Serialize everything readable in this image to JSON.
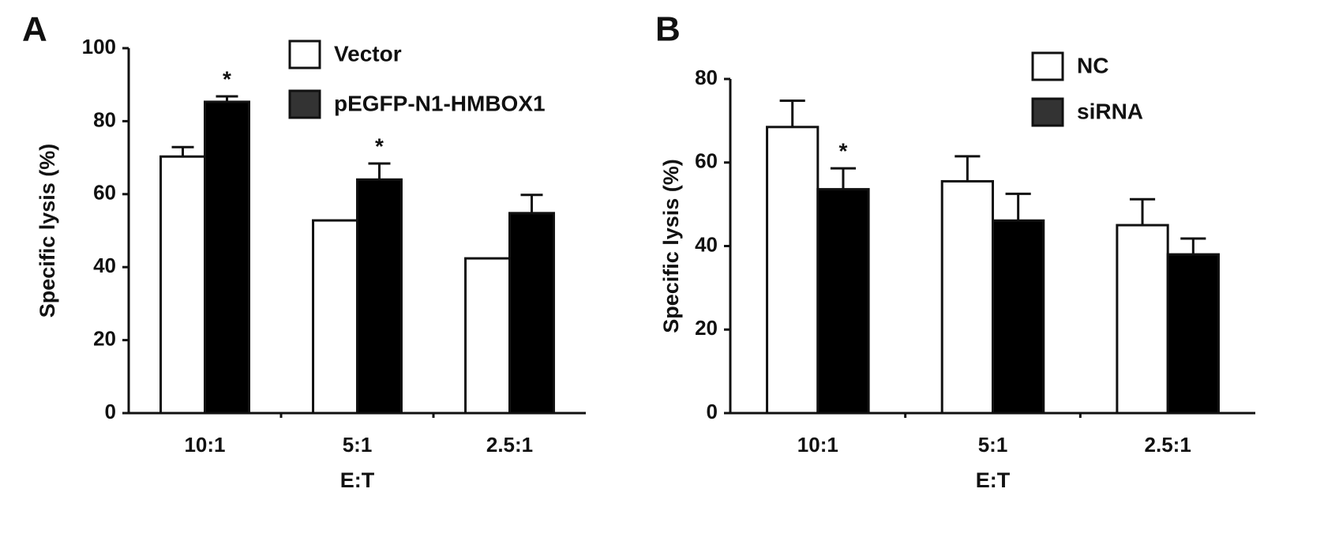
{
  "chart_data": [
    {
      "type": "bar",
      "panel": "A",
      "ylabel": "Specific lysis (%)",
      "xlabel": "E:T",
      "categories": [
        "10:1",
        "5:1",
        "2.5:1"
      ],
      "series": [
        {
          "name": "Vector",
          "color": "#ffffff",
          "values": [
            70.3,
            52.8,
            42.4
          ],
          "errors": [
            2.6,
            null,
            null
          ],
          "markers": [
            null,
            null,
            null
          ]
        },
        {
          "name": "pEGFP-N1-HMBOX1",
          "color": "#000000",
          "legend_color": "#333333",
          "values": [
            85.3,
            64,
            54.8
          ],
          "errors": [
            1.5,
            4.4,
            5
          ],
          "markers": [
            "*",
            "*",
            null
          ]
        }
      ],
      "ylim": [
        0,
        100
      ],
      "yticks": [
        0,
        20,
        40,
        60,
        80,
        100
      ],
      "grid": false,
      "legend": "top"
    },
    {
      "type": "bar",
      "panel": "B",
      "ylabel": "Specific lysis (%)",
      "xlabel": "E:T",
      "categories": [
        "10:1",
        "5:1",
        "2.5:1"
      ],
      "series": [
        {
          "name": "NC",
          "color": "#ffffff",
          "values": [
            68.5,
            55.5,
            45
          ],
          "errors": [
            6.3,
            6,
            6.2
          ],
          "markers": [
            null,
            null,
            null
          ]
        },
        {
          "name": "siRNA",
          "color": "#000000",
          "legend_color": "#333333",
          "values": [
            53.6,
            46.1,
            38
          ],
          "errors": [
            5,
            6.4,
            3.8
          ],
          "markers": [
            "*",
            null,
            null
          ]
        }
      ],
      "ylim": [
        0,
        80
      ],
      "yticks": [
        0,
        20,
        40,
        60,
        80
      ],
      "grid": false,
      "legend": "top-right"
    }
  ]
}
